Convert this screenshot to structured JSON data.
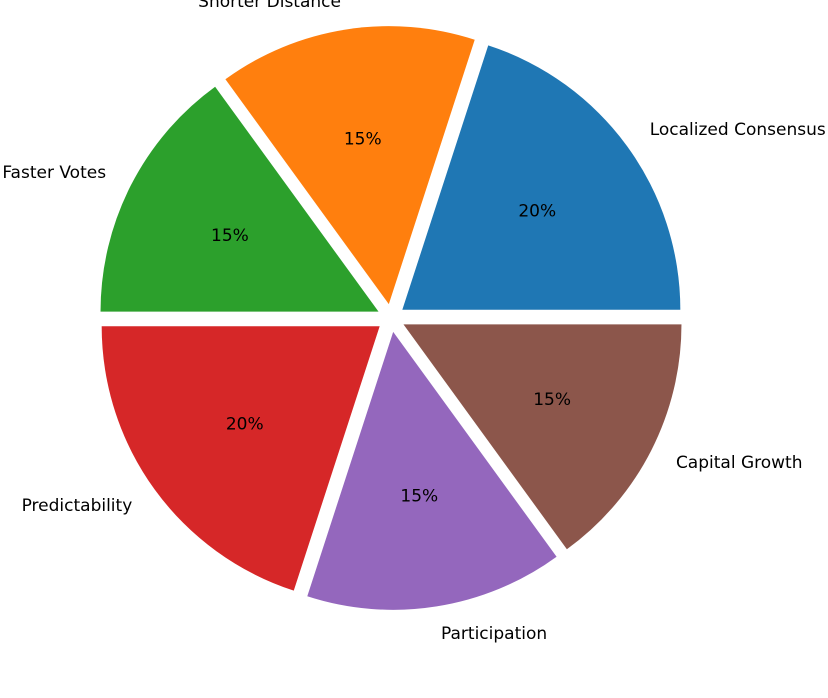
{
  "chart_data": {
    "type": "pie",
    "title": "",
    "slices": [
      {
        "label": "Localized Consensus",
        "value": 20,
        "pct_label": "20%",
        "color": "#1f77b4"
      },
      {
        "label": "Shorter Distance",
        "value": 15,
        "pct_label": "15%",
        "color": "#ff7f0e"
      },
      {
        "label": "Faster Votes",
        "value": 15,
        "pct_label": "15%",
        "color": "#2ca02c"
      },
      {
        "label": "Predictability",
        "value": 20,
        "pct_label": "20%",
        "color": "#d62728"
      },
      {
        "label": "Participation",
        "value": 15,
        "pct_label": "15%",
        "color": "#9467bd"
      },
      {
        "label": "Capital Growth",
        "value": 15,
        "pct_label": "15%",
        "color": "#8c564b"
      }
    ],
    "start_angle": "0 degrees (3 o'clock), counterclockwise",
    "exploded": true,
    "legend": "none"
  }
}
